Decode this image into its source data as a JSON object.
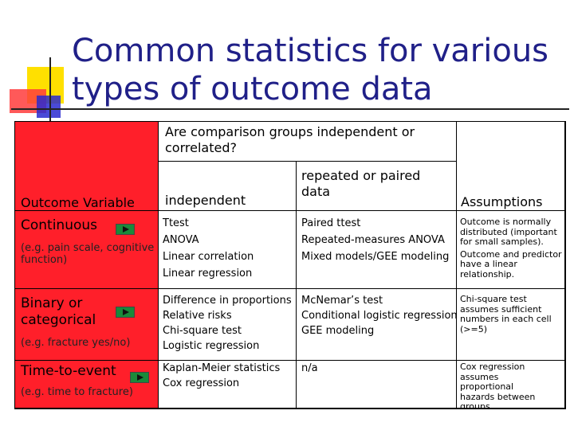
{
  "title": {
    "line1": "Common statistics for various",
    "line2": "types of outcome data"
  },
  "table": {
    "group_header": "Are comparison groups independent or correlated?",
    "headers": {
      "outcome": "Outcome Variable",
      "independent": "independent",
      "correlated": "repeated or paired data",
      "assumptions": "Assumptions"
    },
    "rows": [
      {
        "outcome": "Continuous",
        "example": "(e.g. pain scale, cognitive function)",
        "independent": [
          "Ttest",
          "ANOVA",
          "Linear correlation",
          "Linear regression"
        ],
        "correlated": [
          "Paired ttest",
          "Repeated-measures ANOVA",
          "Mixed models/GEE modeling"
        ],
        "assumptions": [
          "Outcome is normally distributed (important for small samples).",
          "Outcome and predictor have a linear relationship."
        ]
      },
      {
        "outcome": "Binary or categorical",
        "example": "(e.g. fracture yes/no)",
        "independent": [
          "Difference in proportions",
          "Relative risks",
          "Chi-square test",
          "Logistic regression"
        ],
        "correlated": [
          "McNemar’s test",
          "Conditional logistic regression",
          "GEE modeling"
        ],
        "assumptions": [
          "Chi-square test assumes sufficient numbers in each cell (>=5)"
        ]
      },
      {
        "outcome": "Time-to-event",
        "example": "(e.g. time to fracture)",
        "independent": [
          "Kaplan-Meier statistics",
          "Cox regression"
        ],
        "correlated": [
          "n/a"
        ],
        "assumptions": [
          "Cox regression assumes proportional hazards between groups"
        ]
      }
    ]
  },
  "colors": {
    "title": "#202088",
    "outcome_column": "#ff1f2a",
    "play_button": "#1a8a3a"
  },
  "icons": {
    "row_link": "play-button-icon"
  }
}
